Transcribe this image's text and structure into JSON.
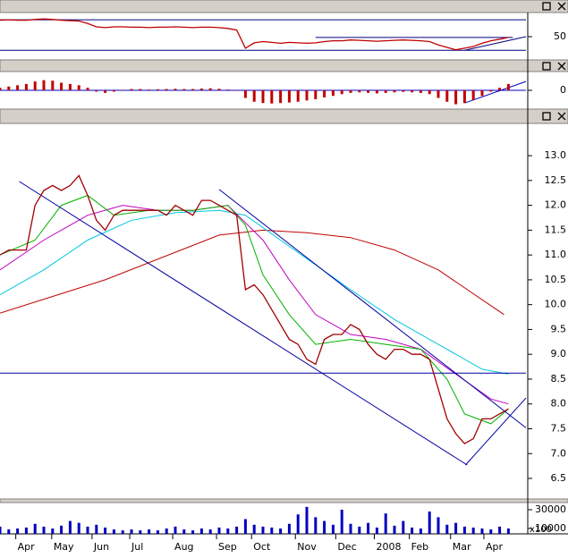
{
  "chart_data": {
    "type": "stock",
    "x": [
      0,
      1,
      2,
      3,
      4,
      5,
      6,
      7,
      8,
      9,
      10,
      11,
      12,
      13,
      14,
      15,
      16,
      17,
      18,
      19,
      20,
      21,
      22,
      23,
      24,
      25,
      26,
      27,
      28,
      29,
      30,
      31,
      32,
      33,
      34,
      35,
      36,
      37,
      38,
      39,
      40,
      41,
      42,
      43,
      44,
      45,
      46,
      47,
      48,
      49,
      50,
      51,
      52,
      53,
      54,
      55,
      56,
      57,
      58
    ],
    "xlim": [
      0,
      60
    ],
    "xticks": [
      {
        "value": 1.8,
        "label": "Apr"
      },
      {
        "value": 5.9,
        "label": "May"
      },
      {
        "value": 10.5,
        "label": "Jun"
      },
      {
        "value": 14.8,
        "label": "Jul"
      },
      {
        "value": 19.7,
        "label": "Aug"
      },
      {
        "value": 24.7,
        "label": "Sep"
      },
      {
        "value": 28.7,
        "label": "Oct"
      },
      {
        "value": 33.7,
        "label": "Nov"
      },
      {
        "value": 38.3,
        "label": "Dec"
      },
      {
        "value": 42.7,
        "label": "2008"
      },
      {
        "value": 46.7,
        "label": "Feb"
      },
      {
        "value": 51.4,
        "label": "Mar"
      },
      {
        "value": 55.2,
        "label": "Apr"
      }
    ],
    "panels": [
      {
        "type": "line",
        "ylim": [
          0,
          100
        ],
        "yticks": [
          50
        ],
        "series": [
          {
            "color": "#c00000",
            "values": [
              90,
              91,
              90,
              90,
              92,
              93,
              92,
              90,
              89,
              88,
              82,
              74,
              72,
              74,
              74,
              73,
              73,
              72,
              73,
              73,
              74,
              73,
              72,
              73,
              73,
              72,
              70,
              66,
              22,
              35,
              38,
              36,
              34,
              36,
              35,
              34,
              35,
              38,
              40,
              40,
              42,
              41,
              40,
              39,
              40,
              41,
              42,
              41,
              40,
              38,
              30,
              24,
              18,
              22,
              26,
              34,
              40,
              44,
              48
            ]
          }
        ],
        "lines": [
          {
            "color": "#000080",
            "x": [
              0,
              60
            ],
            "values": [
              91,
              91
            ]
          },
          {
            "color": "#000080",
            "x": [
              0,
              60
            ],
            "values": [
              17,
              17
            ]
          },
          {
            "color": "#000080",
            "x": [
              36,
              58.5
            ],
            "values": [
              48,
              48
            ]
          },
          {
            "color": "#000080",
            "x": [
              53,
              60
            ],
            "values": [
              17,
              50
            ]
          }
        ]
      },
      {
        "type": "histogram",
        "ylim": [
          -0.6,
          0.6
        ],
        "yticks": [
          0
        ],
        "series": [
          {
            "color": "#c00000",
            "values": [
              0.1,
              0.15,
              0.2,
              0.25,
              0.35,
              0.4,
              0.38,
              0.3,
              0.25,
              0.2,
              0.1,
              -0.05,
              -0.1,
              -0.05,
              0.02,
              0.05,
              0.05,
              0.03,
              0.04,
              0.05,
              0.06,
              0.05,
              0.05,
              0.07,
              0.08,
              0.06,
              0.03,
              -0.02,
              -0.3,
              -0.45,
              -0.5,
              -0.52,
              -0.5,
              -0.48,
              -0.45,
              -0.4,
              -0.35,
              -0.28,
              -0.22,
              -0.15,
              -0.1,
              -0.08,
              -0.1,
              -0.12,
              -0.1,
              -0.08,
              -0.06,
              -0.08,
              -0.1,
              -0.15,
              -0.3,
              -0.45,
              -0.55,
              -0.5,
              -0.38,
              -0.22,
              -0.05,
              0.1,
              0.25
            ]
          }
        ],
        "lines": [
          {
            "color": "#0000c0",
            "x": [
              0,
              60
            ],
            "values": [
              0,
              0
            ]
          },
          {
            "color": "#0000c0",
            "x": [
              53,
              60
            ],
            "values": [
              -0.5,
              0.35
            ]
          }
        ]
      },
      {
        "type": "line",
        "ylim": [
          6.05,
          13.65
        ],
        "yticks": [
          {
            "value": 13,
            "label": "13.0"
          },
          12.5,
          {
            "value": 12,
            "label": "12.0"
          },
          11.5,
          {
            "value": 11,
            "label": "11.0"
          },
          10.5,
          {
            "value": 10,
            "label": "10.0"
          },
          9.5,
          {
            "value": 9,
            "label": "9.0"
          },
          8.5,
          {
            "value": 8,
            "label": "8.0"
          },
          7.5,
          {
            "value": 7,
            "label": "7.0"
          },
          6.5
        ],
        "series": [
          {
            "color": "#a00000",
            "values": [
              11.0,
              11.1,
              11.1,
              11.1,
              12.0,
              12.3,
              12.4,
              12.3,
              12.4,
              12.6,
              12.2,
              11.7,
              11.5,
              11.8,
              11.9,
              11.9,
              11.9,
              11.9,
              11.9,
              11.8,
              12.0,
              11.9,
              11.8,
              12.1,
              12.1,
              12.0,
              11.9,
              11.8,
              10.3,
              10.4,
              10.2,
              9.9,
              9.6,
              9.3,
              9.2,
              8.9,
              8.8,
              9.3,
              9.4,
              9.4,
              9.6,
              9.5,
              9.2,
              9.0,
              8.9,
              9.1,
              9.1,
              9.0,
              9.0,
              8.9,
              8.3,
              7.7,
              7.4,
              7.2,
              7.3,
              7.7,
              7.7,
              7.8,
              7.9
            ]
          }
        ],
        "lines": [
          {
            "color": "#c00000",
            "x": [
              0,
              12,
              25,
              30,
              35,
              40,
              45,
              50,
              57.5
            ],
            "values": [
              9.83,
              10.5,
              11.4,
              11.5,
              11.45,
              11.35,
              11.1,
              10.7,
              9.8
            ]
          },
          {
            "color": "#00c8e0",
            "x": [
              0,
              5,
              10,
              15,
              20,
              25,
              28,
              32,
              36,
              40,
              45,
              50,
              55,
              58
            ],
            "values": [
              10.2,
              10.7,
              11.3,
              11.7,
              11.85,
              11.9,
              11.8,
              11.3,
              10.8,
              10.3,
              9.7,
              9.2,
              8.7,
              8.6
            ]
          },
          {
            "color": "#c000c0",
            "x": [
              0,
              5,
              10,
              14,
              18,
              22,
              26,
              30,
              33,
              36,
              40,
              44,
              48,
              52,
              56,
              58
            ],
            "values": [
              10.7,
              11.3,
              11.8,
              12.0,
              11.9,
              11.9,
              12.0,
              11.3,
              10.5,
              9.8,
              9.4,
              9.3,
              9.1,
              8.6,
              8.1,
              8.0
            ]
          },
          {
            "color": "#00b000",
            "x": [
              0,
              4,
              7,
              10,
              13,
              17,
              22,
              26,
              28,
              30,
              33,
              36,
              40,
              44,
              48,
              51,
              53,
              56,
              58
            ],
            "values": [
              11.0,
              11.3,
              12.0,
              12.2,
              11.8,
              11.9,
              11.9,
              12.0,
              11.6,
              10.6,
              9.8,
              9.2,
              9.3,
              9.2,
              9.1,
              8.5,
              7.8,
              7.6,
              7.9
            ]
          },
          {
            "color": "#0000a0",
            "x": [
              2.2,
              53.3
            ],
            "values": [
              12.48,
              6.77
            ]
          },
          {
            "color": "#0000a0",
            "x": [
              25,
              60
            ],
            "values": [
              12.32,
              7.52
            ]
          },
          {
            "color": "#0000a0",
            "x": [
              0,
              60
            ],
            "values": [
              8.62,
              8.62
            ]
          },
          {
            "color": "#0000a0",
            "x": [
              53.1,
              60
            ],
            "values": [
              6.77,
              8.12
            ]
          }
        ]
      },
      {
        "type": "bar",
        "ylim": [
          4300,
          37600
        ],
        "yticks": [
          30000,
          10000
        ],
        "unit_label": "x100",
        "series": [
          {
            "color": "#0000c0",
            "values": [
              12000,
              9000,
              10000,
              11000,
              15000,
              12000,
              10000,
              13000,
              18000,
              16000,
              12000,
              14000,
              11000,
              9000,
              8000,
              9000,
              8000,
              9000,
              8000,
              10000,
              12000,
              9000,
              8000,
              10000,
              9000,
              11000,
              10000,
              12000,
              20000,
              14000,
              12000,
              11000,
              10000,
              15000,
              25000,
              33000,
              22000,
              18000,
              14000,
              30000,
              15000,
              12000,
              16000,
              11000,
              26000,
              13000,
              18000,
              11000,
              10000,
              28000,
              22000,
              14000,
              16000,
              12000,
              11000,
              10000,
              9000,
              12000,
              10000
            ]
          }
        ]
      }
    ]
  }
}
